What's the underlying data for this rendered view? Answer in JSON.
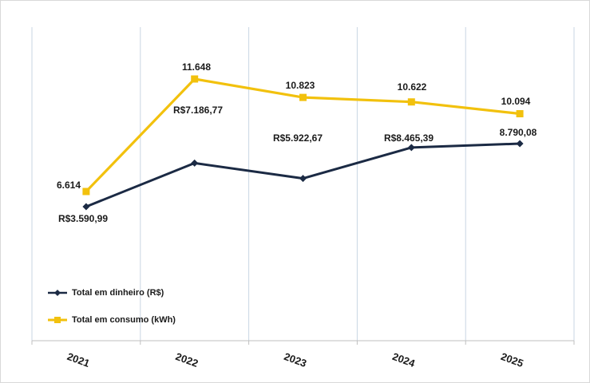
{
  "chart_data": {
    "type": "line",
    "title": "",
    "xlabel": "",
    "ylabel": "",
    "categories": [
      "2021",
      "2022",
      "2023",
      "2024",
      "2025"
    ],
    "grid": "vertical",
    "legend_position": "left",
    "series": [
      {
        "name": "Total em dinheiro (R$)",
        "color": "#1b2a44",
        "marker": "diamond",
        "values": [
          3590.99,
          7186.77,
          5922.67,
          8465.39,
          8790.08
        ],
        "labels": [
          "R$3.590,99",
          "R$7.186,77",
          "R$5.922,67",
          "R$8.465,39",
          "8.790,08"
        ]
      },
      {
        "name": "Total em consumo (kWh)",
        "color": "#f2c10d",
        "marker": "square",
        "values": [
          6614,
          11648,
          10823,
          10622,
          10094
        ],
        "labels": [
          "6.614",
          "11.648",
          "10.823",
          "10.622",
          "10.094"
        ]
      }
    ]
  }
}
